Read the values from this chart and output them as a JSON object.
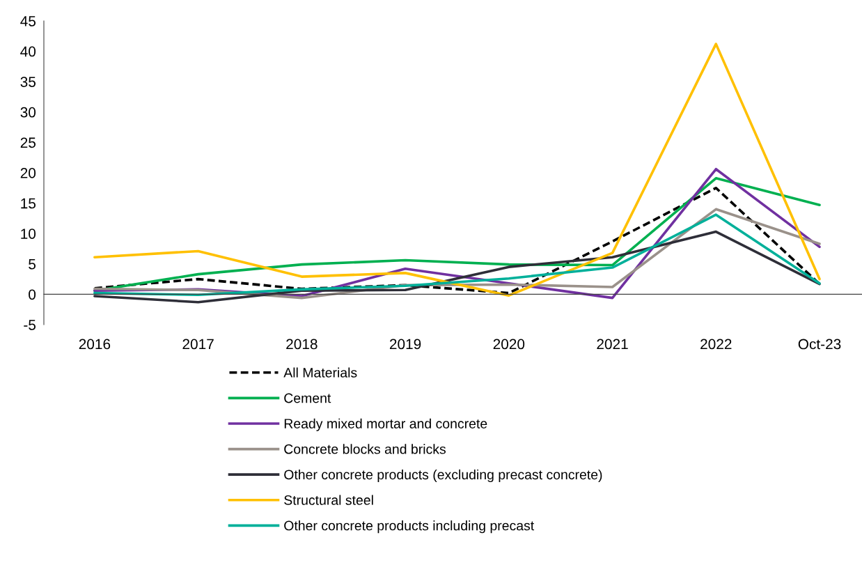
{
  "chart_data": {
    "type": "line",
    "categories": [
      "2016",
      "2017",
      "2018",
      "2019",
      "2020",
      "2021",
      "2022",
      "Oct-23"
    ],
    "ylim": [
      -5,
      45
    ],
    "yticks": [
      -5,
      0,
      5,
      10,
      15,
      20,
      25,
      30,
      35,
      40,
      45
    ],
    "legend": "bottom",
    "marker": "none",
    "series": [
      {
        "name": "All Materials",
        "color": "#000000",
        "line_style": "dashed",
        "values": [
          1.0,
          2.5,
          0.9,
          1.5,
          0.2,
          8.7,
          17.5,
          1.7
        ]
      },
      {
        "name": "Cement",
        "color": "#00b050",
        "values": [
          0.6,
          3.3,
          4.9,
          5.6,
          4.9,
          4.8,
          19.1,
          14.7
        ]
      },
      {
        "name": "Ready mixed mortar and concrete",
        "color": "#7030a0",
        "values": [
          0.6,
          0.8,
          -0.3,
          4.2,
          1.8,
          -0.6,
          20.6,
          7.8
        ]
      },
      {
        "name": "Concrete blocks and bricks",
        "color": "#9a918a",
        "values": [
          0.9,
          0.7,
          -0.6,
          1.5,
          1.6,
          1.2,
          14.0,
          8.3
        ]
      },
      {
        "name": "Other concrete products (excluding precast concrete)",
        "color": "#2e2e38",
        "values": [
          -0.3,
          -1.3,
          0.6,
          0.7,
          4.5,
          6.1,
          10.3,
          1.7
        ]
      },
      {
        "name": "Structural steel",
        "color": "#ffc000",
        "values": [
          6.1,
          7.1,
          2.9,
          3.5,
          -0.2,
          6.8,
          41.2,
          2.5
        ]
      },
      {
        "name": "Other concrete products including precast",
        "color": "#00b09a",
        "values": [
          0.2,
          -0.1,
          0.8,
          1.4,
          2.6,
          4.4,
          13.1,
          1.8
        ]
      }
    ]
  }
}
